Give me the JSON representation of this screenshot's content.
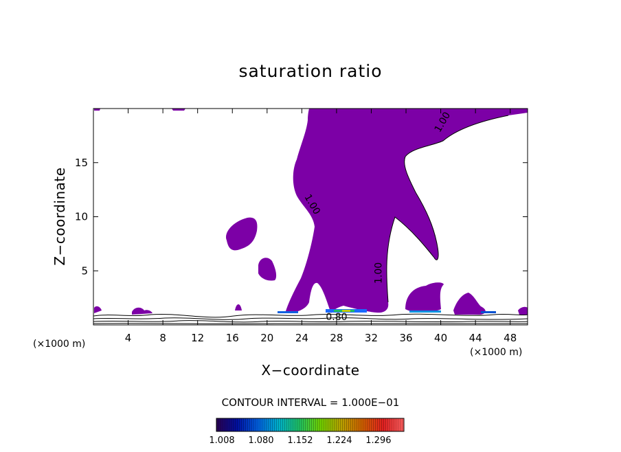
{
  "chart_data": {
    "type": "contour",
    "title": "saturation ratio",
    "xlabel": "X−coordinate",
    "ylabel": "Z−coordinate",
    "x_unit_label": "(×1000 m)",
    "xlim": [
      0,
      50
    ],
    "ylim": [
      0,
      20
    ],
    "x_ticks": [
      4,
      8,
      12,
      16,
      20,
      24,
      28,
      32,
      36,
      40,
      44,
      48
    ],
    "y_ticks": [
      5,
      10,
      15
    ],
    "contour_interval_text": "CONTOUR INTERVAL = 1.000E−01",
    "contour_labels": [
      {
        "text": "1.00",
        "x": 40.5,
        "z": 18.6
      },
      {
        "text": "1.00",
        "x": 24.9,
        "z": 11.0
      },
      {
        "text": "1.00",
        "x": 33.2,
        "z": 4.8
      },
      {
        "text": "0.80",
        "x": 28.0,
        "z": 0.45
      }
    ],
    "fill_color": "#7c00a6",
    "colorbar": {
      "tick_labels": [
        "1.008",
        "1.080",
        "1.152",
        "1.224",
        "1.296"
      ],
      "colors": [
        "#2a0052",
        "#0010a0",
        "#0060e0",
        "#00b0c8",
        "#20c060",
        "#70d000",
        "#b8a000",
        "#d06000",
        "#e02020",
        "#ff6060"
      ]
    },
    "grid": false,
    "legend": "colorbar-bottom"
  }
}
